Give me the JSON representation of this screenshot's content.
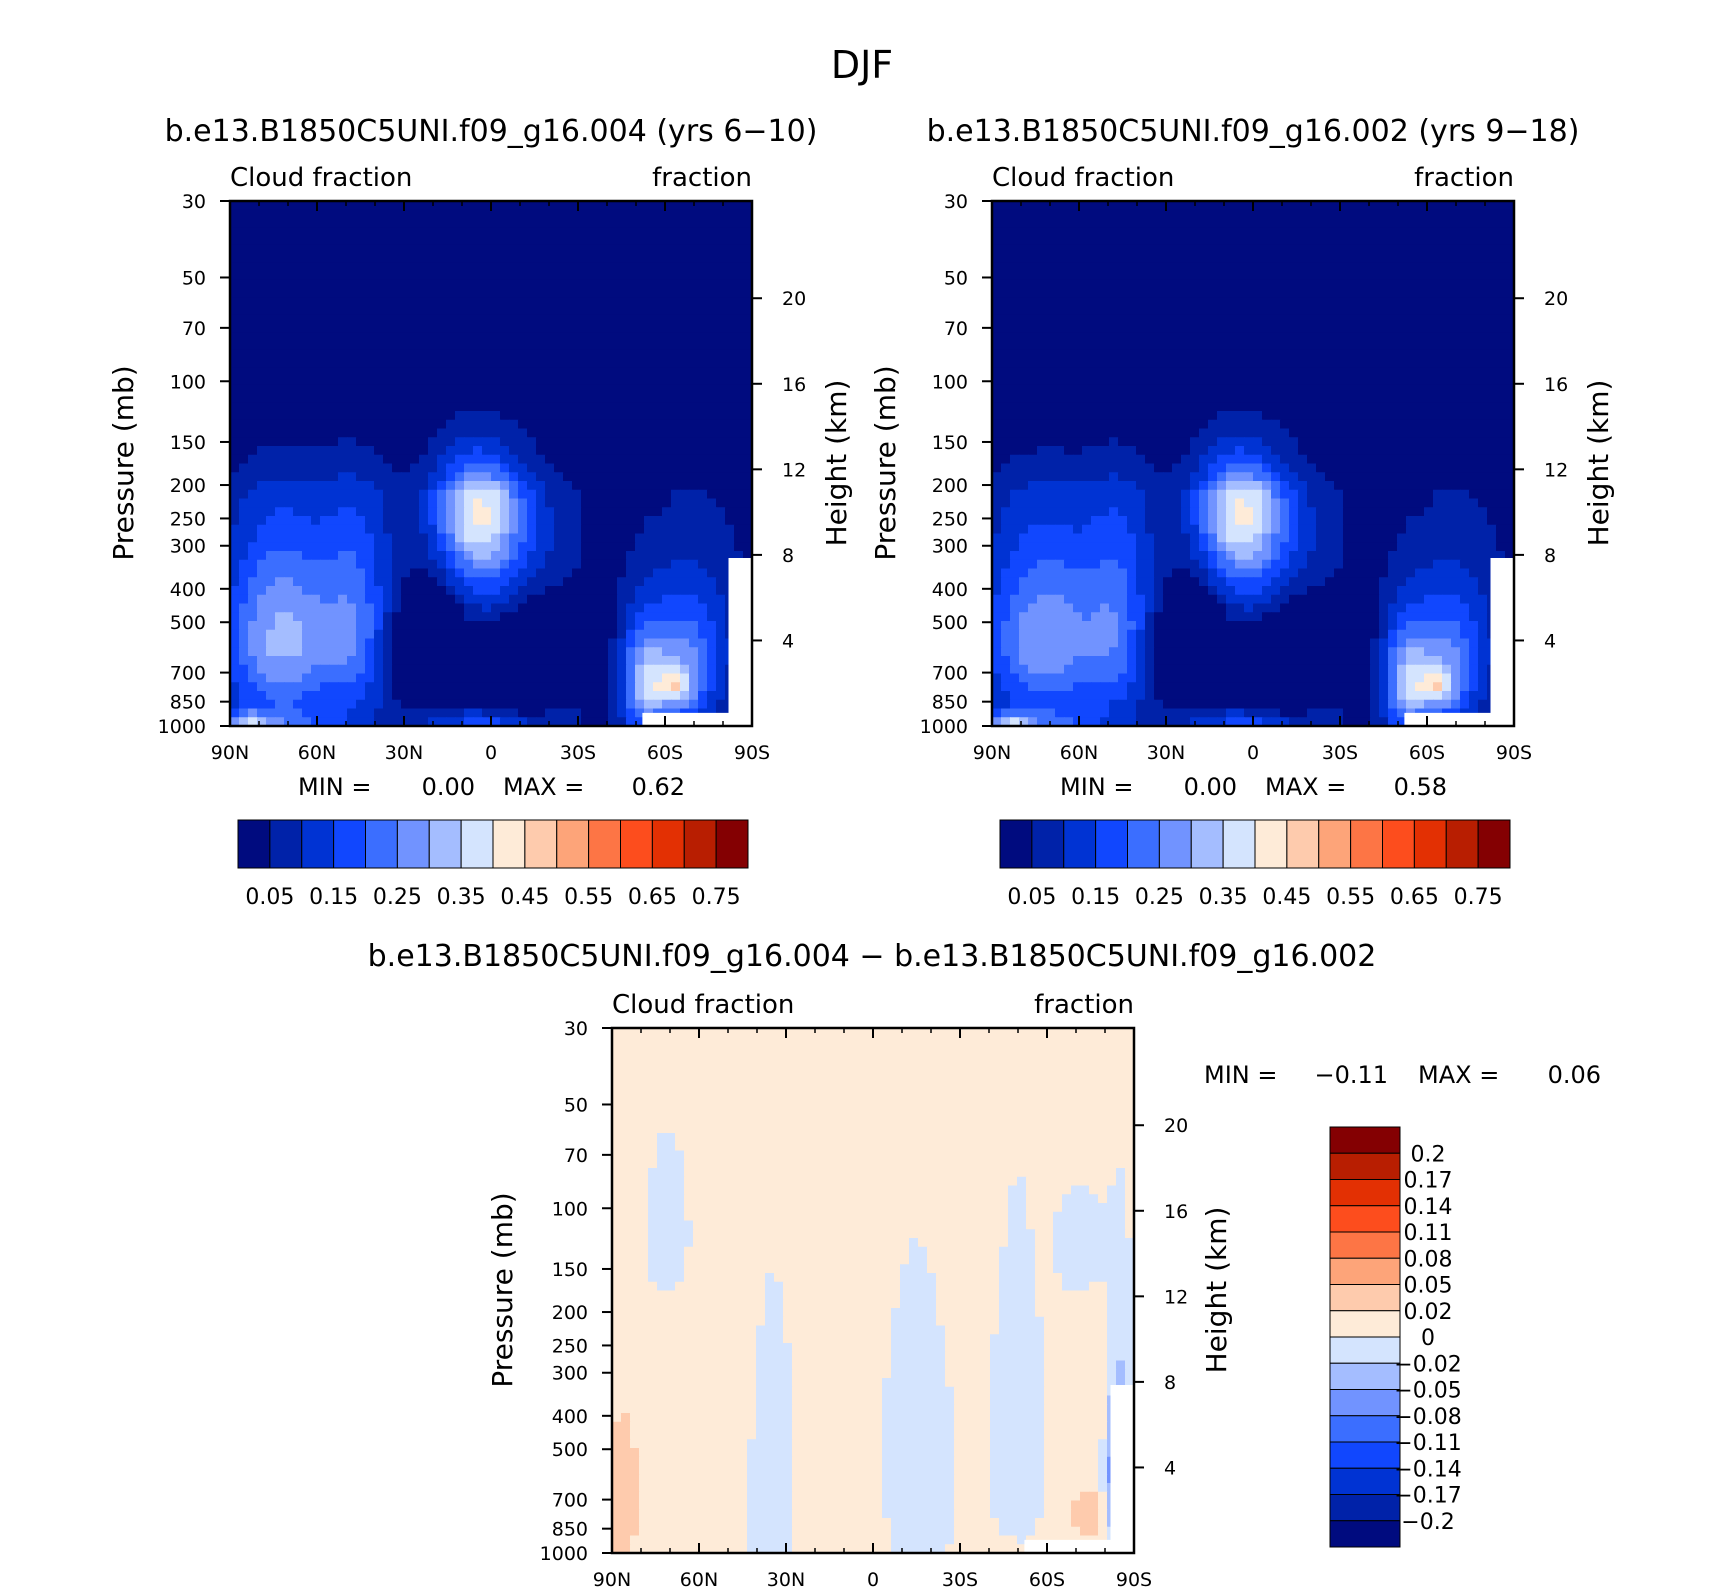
{
  "figure": {
    "title": "DJF",
    "difference_title": "b.e13.B1850C5UNI.f09_g16.004 − b.e13.B1850C5UNI.f09_g16.002",
    "stats_labels": {
      "min": "MIN =",
      "max": "MAX ="
    },
    "colors": {
      "seq": [
        "#000b7f",
        "#0022a9",
        "#0033d3",
        "#1147fe",
        "#3b6eff",
        "#7193ff",
        "#a4bdff",
        "#d4e4fe",
        "#feebd8",
        "#fecbad",
        "#fda479",
        "#fd7545",
        "#fd4d1d",
        "#e33003",
        "#b81e01",
        "#840002"
      ],
      "div": [
        "#000b7f",
        "#0022a9",
        "#0033d3",
        "#1147fe",
        "#3b6eff",
        "#7193ff",
        "#a4bdff",
        "#d4e4fe",
        "#feebd8",
        "#fecbad",
        "#fda479",
        "#fd7545",
        "#fd4d1d",
        "#e33003",
        "#b81e01",
        "#840002"
      ]
    }
  },
  "chart_data": [
    {
      "type": "heatmap",
      "title": "b.e13.B1850C5UNI.f09_g16.004 (yrs 6−10)",
      "left_label": "Cloud fraction",
      "right_label": "fraction",
      "xlabel": "",
      "ylabel": "Pressure (mb)",
      "y2label": "Height (km)",
      "x_ticks": [
        "90N",
        "60N",
        "30N",
        "0",
        "30S",
        "60S",
        "90S"
      ],
      "y_ticks": [
        "30",
        "50",
        "70",
        "100",
        "150",
        "200",
        "250",
        "300",
        "400",
        "500",
        "700",
        "850",
        "1000"
      ],
      "y2_ticks": [
        "20",
        "16",
        "12",
        "8",
        "4"
      ],
      "min_value": "0.00",
      "max_value": "0.62",
      "colorbar_labels": [
        "0.05",
        "0.15",
        "0.25",
        "0.35",
        "0.45",
        "0.55",
        "0.65",
        "0.75"
      ]
    },
    {
      "type": "heatmap",
      "title": "b.e13.B1850C5UNI.f09_g16.002 (yrs 9−18)",
      "left_label": "Cloud fraction",
      "right_label": "fraction",
      "xlabel": "",
      "ylabel": "Pressure (mb)",
      "y2label": "Height (km)",
      "x_ticks": [
        "90N",
        "60N",
        "30N",
        "0",
        "30S",
        "60S",
        "90S"
      ],
      "y_ticks": [
        "30",
        "50",
        "70",
        "100",
        "150",
        "200",
        "250",
        "300",
        "400",
        "500",
        "700",
        "850",
        "1000"
      ],
      "y2_ticks": [
        "20",
        "16",
        "12",
        "8",
        "4"
      ],
      "min_value": "0.00",
      "max_value": "0.58",
      "colorbar_labels": [
        "0.05",
        "0.15",
        "0.25",
        "0.35",
        "0.45",
        "0.55",
        "0.65",
        "0.75"
      ]
    },
    {
      "type": "heatmap",
      "title": "b.e13.B1850C5UNI.f09_g16.004 − b.e13.B1850C5UNI.f09_g16.002",
      "left_label": "Cloud fraction",
      "right_label": "fraction",
      "xlabel": "",
      "ylabel": "Pressure (mb)",
      "y2label": "Height (km)",
      "x_ticks": [
        "90N",
        "60N",
        "30N",
        "0",
        "30S",
        "60S",
        "90S"
      ],
      "y_ticks": [
        "30",
        "50",
        "70",
        "100",
        "150",
        "200",
        "250",
        "300",
        "400",
        "500",
        "700",
        "850",
        "1000"
      ],
      "y2_ticks": [
        "20",
        "16",
        "12",
        "8",
        "4"
      ],
      "min_value": "−0.11",
      "max_value": "0.06",
      "colorbar_labels": [
        "0.2",
        "0.17",
        "0.14",
        "0.11",
        "0.08",
        "0.05",
        "0.02",
        "0",
        "−0.02",
        "−0.05",
        "−0.08",
        "−0.11",
        "−0.14",
        "−0.17",
        "−0.2"
      ]
    }
  ]
}
